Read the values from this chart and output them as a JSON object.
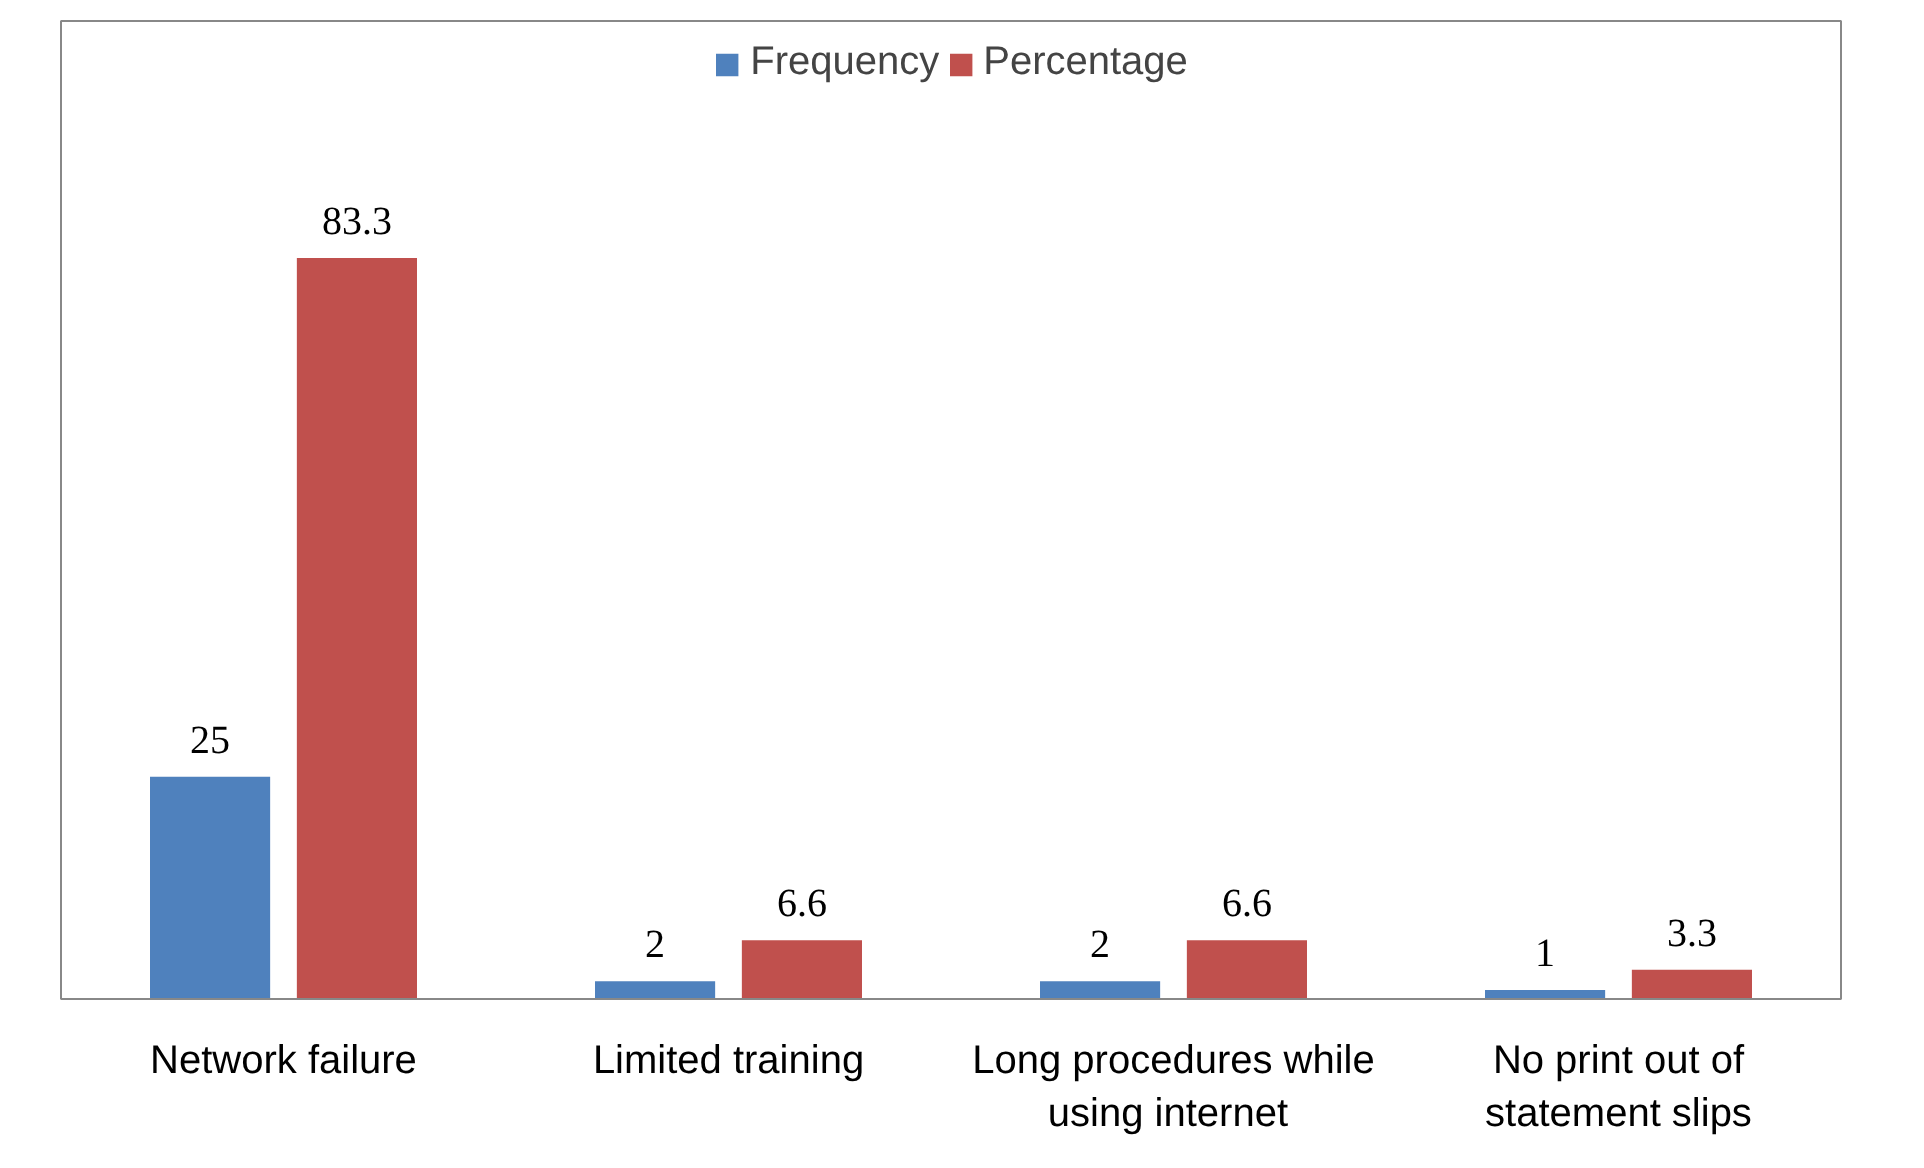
{
  "chart_data": {
    "type": "bar",
    "categories": [
      "Network failure",
      "Limited training",
      "Long procedures while using  internet",
      "No print out of statement slips"
    ],
    "series": [
      {
        "name": "Frequency",
        "color": "#4f81bd",
        "values": [
          25,
          2,
          2,
          1
        ]
      },
      {
        "name": "Percentage",
        "color": "#c0504d",
        "values": [
          83.3,
          6.6,
          6.6,
          3.3
        ]
      }
    ],
    "data_labels": true,
    "legend": "top"
  }
}
